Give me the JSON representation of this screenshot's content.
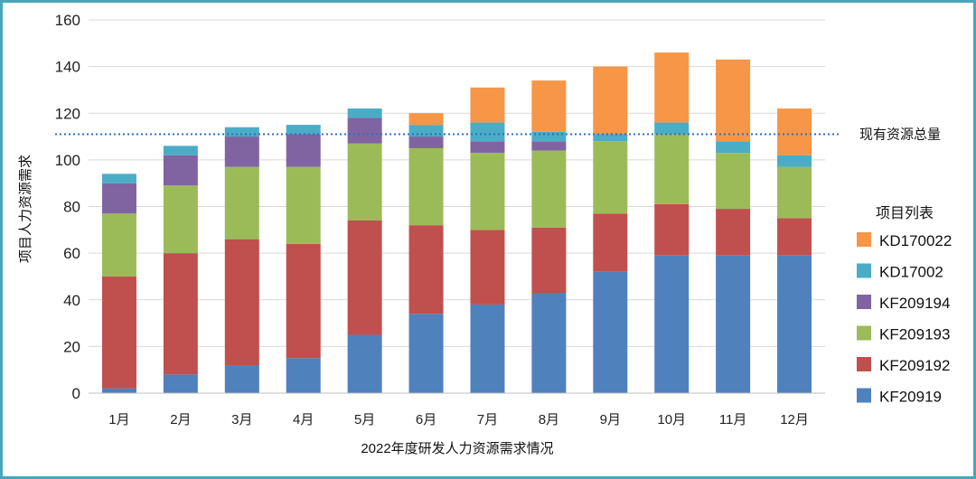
{
  "chart_data": {
    "type": "bar",
    "stacked": true,
    "xlabel": "2022年度研发人力资源需求情况",
    "ylabel": "项目人力资源需求",
    "ylim": [
      0,
      160
    ],
    "yticks": [
      0,
      20,
      40,
      60,
      80,
      100,
      120,
      140,
      160
    ],
    "grid": true,
    "categories": [
      "1月",
      "2月",
      "3月",
      "4月",
      "5月",
      "6月",
      "7月",
      "8月",
      "9月",
      "10月",
      "11月",
      "12月"
    ],
    "series": [
      {
        "name": "KF20919",
        "color": "#4f81bd",
        "values": [
          2,
          8,
          12,
          15,
          25,
          34,
          38,
          43,
          52,
          59,
          59,
          59
        ]
      },
      {
        "name": "KF209192",
        "color": "#c0504d",
        "values": [
          48,
          52,
          54,
          49,
          49,
          38,
          32,
          28,
          25,
          22,
          20,
          16
        ]
      },
      {
        "name": "KF209193",
        "color": "#9bbb59",
        "values": [
          27,
          29,
          31,
          33,
          33,
          33,
          33,
          33,
          31,
          30,
          24,
          22
        ]
      },
      {
        "name": "KF209194",
        "color": "#8064a2",
        "values": [
          13,
          13,
          13,
          14,
          11,
          5,
          5,
          4,
          0,
          0,
          0,
          0
        ]
      },
      {
        "name": "KD17002",
        "color": "#4bacc6",
        "values": [
          4,
          4,
          4,
          4,
          4,
          5,
          8,
          4,
          3,
          5,
          5,
          5
        ]
      },
      {
        "name": "KD170022",
        "color": "#f79646",
        "values": [
          0,
          0,
          0,
          0,
          0,
          5,
          15,
          22,
          29,
          30,
          35,
          20
        ]
      }
    ],
    "reference_line": {
      "label": "现有资源总量",
      "value": 111,
      "color": "#2e6fc0",
      "style": "dotted"
    },
    "legend": {
      "title": "项目列表",
      "position": "right",
      "order": [
        "KD170022",
        "KD17002",
        "KF209194",
        "KF209193",
        "KF209192",
        "KF20919"
      ]
    }
  }
}
